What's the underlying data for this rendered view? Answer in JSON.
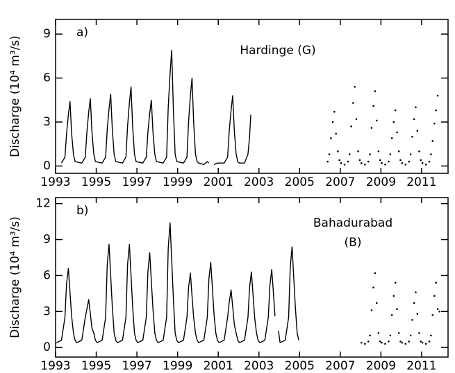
{
  "chart_data": [
    {
      "type": "line",
      "label": "a)",
      "annotation": [
        "Hardinge (G)"
      ],
      "ylabel": "Discharge (10⁴ m³/s)",
      "xlim": [
        1993,
        2012.3
      ],
      "ylim": [
        -0.5,
        10
      ],
      "xticks": [
        1993,
        1995,
        1997,
        1999,
        2001,
        2003,
        2005,
        2007,
        2009,
        2011
      ],
      "yticks": [
        0,
        3,
        6,
        9
      ],
      "series": [
        {
          "style": "line",
          "color": "#000000",
          "x": [
            1993.29,
            1993.46,
            1993.54,
            1993.63,
            1993.71,
            1993.79,
            1993.88,
            1993.96,
            1994.29,
            1994.46,
            1994.54,
            1994.63,
            1994.71,
            1994.79,
            1994.88,
            1994.96,
            1995.29,
            1995.46,
            1995.54,
            1995.63,
            1995.71,
            1995.79,
            1995.88,
            1995.96,
            1996.29,
            1996.46,
            1996.54,
            1996.63,
            1996.71,
            1996.79,
            1996.88,
            1996.96,
            1997.29,
            1997.46,
            1997.54,
            1997.63,
            1997.71,
            1997.79,
            1997.88,
            1997.96,
            1998.29,
            1998.46,
            1998.54,
            1998.63,
            1998.71,
            1998.79,
            1998.88,
            1998.96,
            1999.29,
            1999.46,
            1999.54,
            1999.63,
            1999.71,
            1999.79,
            1999.88,
            1999.96,
            2000.04,
            2000.29,
            2000.46,
            2000.54,
            2000.63,
            2000.79,
            2000.96,
            2001.29,
            2001.46,
            2001.54,
            2001.63,
            2001.71,
            2001.79,
            2001.88,
            2001.96,
            2002.04,
            2002.29,
            2002.46,
            2002.54,
            2002.6
          ],
          "values": [
            0.2,
            0.6,
            2.2,
            3.5,
            4.4,
            2.2,
            0.8,
            0.3,
            0.2,
            0.6,
            2.3,
            3.7,
            4.6,
            2.3,
            0.8,
            0.3,
            0.2,
            0.6,
            2.5,
            3.9,
            4.9,
            2.5,
            0.8,
            0.3,
            0.2,
            0.6,
            2.7,
            4.3,
            5.4,
            2.7,
            0.8,
            0.3,
            0.2,
            0.6,
            2.3,
            3.6,
            4.5,
            2.3,
            0.8,
            0.3,
            0.2,
            0.6,
            4.0,
            6.3,
            7.9,
            4.0,
            0.8,
            0.3,
            0.2,
            0.6,
            3.0,
            4.8,
            6.0,
            3.0,
            0.8,
            0.3,
            0.2,
            0.1,
            0.3,
            0.2,
            null,
            0.1,
            0.2,
            0.2,
            0.6,
            2.4,
            3.8,
            4.8,
            2.4,
            0.8,
            0.3,
            0.2,
            0.2,
            0.8,
            2.0,
            3.5
          ]
        },
        {
          "style": "dots",
          "color": "#000000",
          "x": [
            2006.38,
            2006.46,
            2006.54,
            2006.63,
            2006.71,
            2006.79,
            2006.88,
            2006.96,
            2007.04,
            2007.21,
            2007.38,
            2007.46,
            2007.54,
            2007.63,
            2007.71,
            2007.79,
            2007.88,
            2007.96,
            2008.04,
            2008.21,
            2008.38,
            2008.46,
            2008.54,
            2008.63,
            2008.71,
            2008.79,
            2008.88,
            2008.96,
            2009.04,
            2009.21,
            2009.38,
            2009.46,
            2009.54,
            2009.63,
            2009.71,
            2009.79,
            2009.88,
            2009.96,
            2010.04,
            2010.21,
            2010.38,
            2010.46,
            2010.54,
            2010.63,
            2010.71,
            2010.79,
            2010.88,
            2010.96,
            2011.04,
            2011.21,
            2011.38,
            2011.46,
            2011.54,
            2011.63,
            2011.71,
            2011.79
          ],
          "values": [
            0.3,
            0.8,
            1.9,
            3.0,
            3.7,
            2.2,
            1.0,
            0.4,
            0.2,
            0.1,
            0.3,
            0.8,
            2.7,
            4.3,
            5.4,
            3.2,
            1.0,
            0.4,
            0.2,
            0.1,
            0.3,
            0.8,
            2.6,
            4.1,
            5.1,
            3.1,
            1.0,
            0.4,
            0.2,
            0.1,
            0.3,
            0.8,
            1.9,
            3.0,
            3.8,
            2.3,
            1.0,
            0.4,
            0.2,
            0.1,
            0.3,
            0.8,
            2.0,
            3.2,
            4.0,
            2.4,
            1.0,
            0.4,
            0.2,
            0.1,
            0.3,
            0.8,
            1.7,
            2.9,
            3.8,
            4.8
          ]
        }
      ]
    },
    {
      "type": "line",
      "label": "b)",
      "annotation": [
        "Bahadurabad",
        "(B)"
      ],
      "ylabel": "Discharge (10⁴ m³/s)",
      "xlim": [
        1993,
        2012.3
      ],
      "ylim": [
        -0.8,
        12.5
      ],
      "xticks": [
        1993,
        1995,
        1997,
        1999,
        2001,
        2003,
        2005,
        2007,
        2009,
        2011
      ],
      "yticks": [
        0,
        3,
        6,
        9,
        12
      ],
      "series": [
        {
          "style": "line",
          "color": "#000000",
          "x": [
            1993.04,
            1993.29,
            1993.46,
            1993.54,
            1993.63,
            1993.71,
            1993.79,
            1993.88,
            1993.96,
            1994.04,
            1994.29,
            1994.46,
            1994.54,
            1994.63,
            1994.71,
            1994.79,
            1994.88,
            1994.96,
            1995.04,
            1995.29,
            1995.46,
            1995.54,
            1995.63,
            1995.71,
            1995.79,
            1995.88,
            1995.96,
            1996.04,
            1996.29,
            1996.46,
            1996.54,
            1996.63,
            1996.71,
            1996.79,
            1996.88,
            1996.96,
            1997.04,
            1997.29,
            1997.46,
            1997.54,
            1997.63,
            1997.71,
            1997.79,
            1997.88,
            1997.96,
            1998.04,
            1998.29,
            1998.46,
            1998.54,
            1998.63,
            1998.71,
            1998.79,
            1998.88,
            1998.96,
            1999.04,
            1999.29,
            1999.46,
            1999.54,
            1999.63,
            1999.71,
            1999.79,
            1999.88,
            1999.96,
            2000.04,
            2000.29,
            2000.46,
            2000.54,
            2000.63,
            2000.71,
            2000.79,
            2000.88,
            2000.96,
            2001.04,
            2001.29,
            2001.46,
            2001.54,
            2001.63,
            2001.71,
            2001.79,
            2001.88,
            2001.96,
            2002.04,
            2002.29,
            2002.46,
            2002.54,
            2002.63,
            2002.71,
            2002.79,
            2002.88,
            2002.96,
            2003.04,
            2003.29,
            2003.46,
            2003.54,
            2003.63,
            2003.71,
            2003.79,
            2003.88,
            2003.96,
            2004.04,
            2004.29,
            2004.46,
            2004.54,
            2004.63,
            2004.71,
            2004.79,
            2004.88,
            2004.96
          ],
          "values": [
            0.4,
            0.6,
            2.5,
            5.3,
            6.6,
            4.6,
            2.6,
            1.2,
            0.6,
            0.4,
            0.6,
            2.5,
            3.2,
            4.0,
            2.8,
            1.6,
            1.2,
            0.6,
            0.4,
            0.6,
            2.5,
            6.9,
            8.6,
            6.0,
            3.4,
            1.2,
            0.6,
            0.4,
            0.6,
            2.5,
            6.9,
            8.6,
            6.0,
            3.4,
            1.2,
            0.6,
            0.4,
            0.6,
            2.5,
            6.3,
            7.9,
            5.5,
            3.2,
            1.2,
            0.6,
            0.4,
            0.6,
            2.5,
            8.3,
            10.4,
            7.3,
            4.2,
            1.2,
            0.6,
            0.4,
            0.6,
            2.5,
            5.0,
            6.2,
            4.3,
            2.5,
            1.2,
            0.6,
            0.4,
            0.6,
            2.5,
            5.7,
            7.1,
            5.0,
            2.8,
            1.2,
            0.6,
            0.4,
            0.6,
            2.5,
            3.8,
            4.8,
            3.4,
            1.9,
            1.2,
            0.6,
            0.4,
            0.6,
            2.5,
            5.0,
            6.3,
            4.4,
            2.5,
            1.2,
            0.6,
            0.4,
            0.6,
            2.5,
            5.2,
            6.5,
            4.6,
            2.6,
            null,
            1.4,
            0.4,
            0.6,
            2.5,
            6.7,
            8.4,
            5.9,
            3.4,
            1.2,
            0.6
          ]
        },
        {
          "style": "dots",
          "color": "#000000",
          "x": [
            2008.04,
            2008.21,
            2008.38,
            2008.46,
            2008.54,
            2008.63,
            2008.71,
            2008.79,
            2008.88,
            2008.96,
            2009.04,
            2009.21,
            2009.38,
            2009.46,
            2009.54,
            2009.63,
            2009.71,
            2009.79,
            2009.88,
            2009.96,
            2010.04,
            2010.21,
            2010.38,
            2010.46,
            2010.54,
            2010.63,
            2010.71,
            2010.79,
            2010.88,
            2010.96,
            2011.04,
            2011.21,
            2011.38,
            2011.46,
            2011.54,
            2011.63,
            2011.71,
            2011.79,
            2011.88
          ],
          "values": [
            0.4,
            0.3,
            0.5,
            1.0,
            3.1,
            5.0,
            6.2,
            3.7,
            1.2,
            0.5,
            0.4,
            0.3,
            0.5,
            1.0,
            2.7,
            4.3,
            5.4,
            3.2,
            1.2,
            0.5,
            0.4,
            0.3,
            0.5,
            1.0,
            2.3,
            3.7,
            4.6,
            2.8,
            1.2,
            0.5,
            0.4,
            0.3,
            0.5,
            1.0,
            2.7,
            4.3,
            5.4,
            3.2,
            3.0
          ]
        }
      ]
    }
  ]
}
